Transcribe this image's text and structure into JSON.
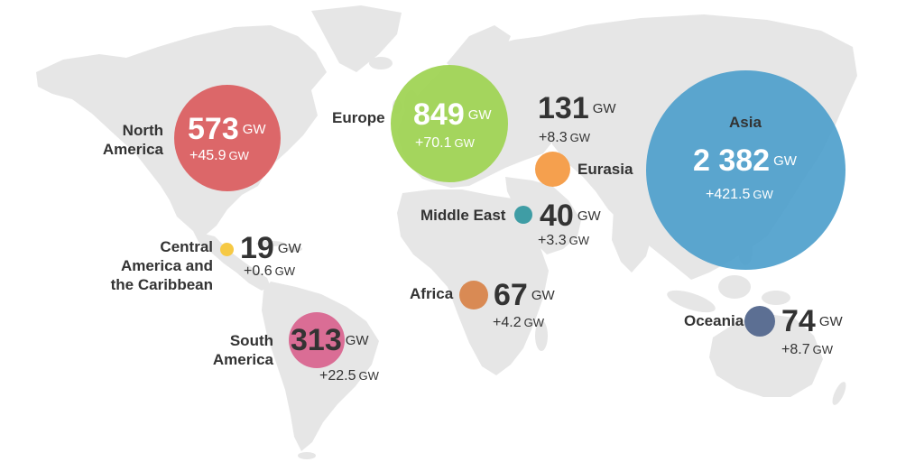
{
  "regions": [
    {
      "id": "north-america",
      "name_lines": [
        "North",
        "America"
      ],
      "capacity": "573",
      "unit": "GW",
      "change": "+45.9",
      "change_unit": "GW",
      "color": "#db5c5e"
    },
    {
      "id": "europe",
      "name_lines": [
        "Europe"
      ],
      "capacity": "849",
      "unit": "GW",
      "change": "+70.1",
      "change_unit": "GW",
      "color": "#9ed352"
    },
    {
      "id": "eurasia",
      "name_lines": [
        "Eurasia"
      ],
      "capacity": "131",
      "unit": "GW",
      "change": "+8.3",
      "change_unit": "GW",
      "color": "#f5a04e"
    },
    {
      "id": "asia",
      "name_lines": [
        "Asia"
      ],
      "capacity": "2 382",
      "unit": "GW",
      "change": "+421.5",
      "change_unit": "GW",
      "color": "#4e9fcc"
    },
    {
      "id": "middle-east",
      "name_lines": [
        "Middle East"
      ],
      "capacity": "40",
      "unit": "GW",
      "change": "+3.3",
      "change_unit": "GW",
      "color": "#3f9da5"
    },
    {
      "id": "central-america",
      "name_lines": [
        "Central",
        "America and",
        "the Caribbean"
      ],
      "capacity": "19",
      "unit": "GW",
      "change": "+0.6",
      "change_unit": "GW",
      "color": "#f6c944"
    },
    {
      "id": "africa",
      "name_lines": [
        "Africa"
      ],
      "capacity": "67",
      "unit": "GW",
      "change": "+4.2",
      "change_unit": "GW",
      "color": "#d98a54"
    },
    {
      "id": "south-america",
      "name_lines": [
        "South",
        "America"
      ],
      "capacity": "313",
      "unit": "GW",
      "change": "+22.5",
      "change_unit": "GW",
      "color": "#d96690"
    },
    {
      "id": "oceania",
      "name_lines": [
        "Oceania"
      ],
      "capacity": "74",
      "unit": "GW",
      "change": "+8.7",
      "change_unit": "GW",
      "color": "#5c6f93"
    }
  ]
}
